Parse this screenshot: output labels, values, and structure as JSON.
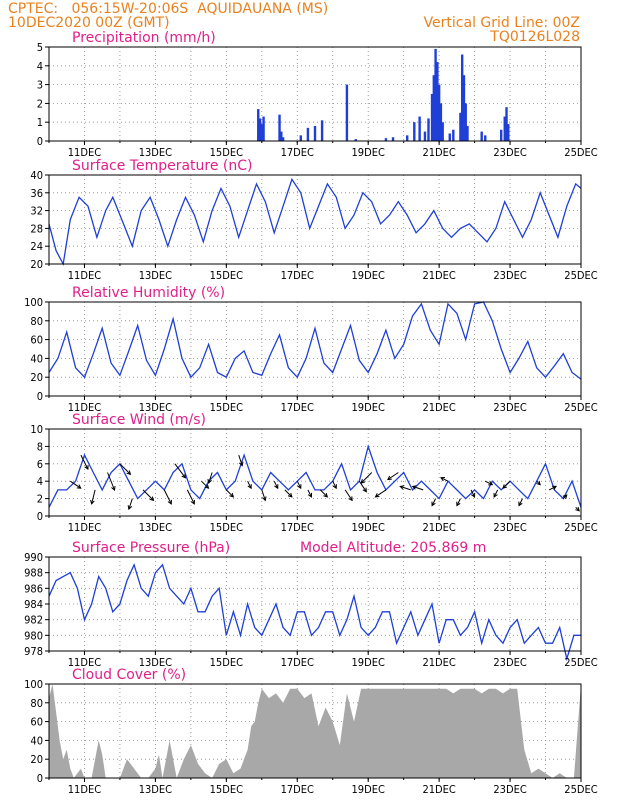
{
  "header": {
    "line1_left": "CPTEC:   056:15W-20:06S  AQUIDAUANA (MS)",
    "line2_left": "10DEC2020 00Z (GMT)",
    "line1_right": "Vertical Grid Line: 00Z",
    "line2_right": "TQ0126L028"
  },
  "chart_data": [
    {
      "type": "bar",
      "title": "Precipitation (mm/h)",
      "ylim": [
        0,
        5
      ],
      "yticks": [
        "0",
        "1",
        "2",
        "3",
        "4",
        "5"
      ],
      "xticks": [
        "11DEC",
        "13DEC",
        "15DEC",
        "17DEC",
        "19DEC",
        "21DEC",
        "23DEC",
        "25DEC"
      ],
      "color": "#1f3fd6",
      "events": [
        {
          "day": 15.9,
          "value": 1.7
        },
        {
          "day": 15.95,
          "value": 1.2
        },
        {
          "day": 16.0,
          "value": 0.9
        },
        {
          "day": 16.05,
          "value": 1.3
        },
        {
          "day": 16.5,
          "value": 1.4
        },
        {
          "day": 16.55,
          "value": 0.5
        },
        {
          "day": 16.6,
          "value": 0.2
        },
        {
          "day": 17.1,
          "value": 0.3
        },
        {
          "day": 17.3,
          "value": 0.7
        },
        {
          "day": 17.5,
          "value": 0.8
        },
        {
          "day": 17.7,
          "value": 1.1
        },
        {
          "day": 18.4,
          "value": 3.0
        },
        {
          "day": 18.65,
          "value": 0.1
        },
        {
          "day": 19.5,
          "value": 0.15
        },
        {
          "day": 19.7,
          "value": 0.2
        },
        {
          "day": 20.1,
          "value": 0.3
        },
        {
          "day": 20.3,
          "value": 1.0
        },
        {
          "day": 20.45,
          "value": 1.3
        },
        {
          "day": 20.6,
          "value": 0.5
        },
        {
          "day": 20.7,
          "value": 1.2
        },
        {
          "day": 20.8,
          "value": 2.5
        },
        {
          "day": 20.85,
          "value": 3.5
        },
        {
          "day": 20.9,
          "value": 4.9
        },
        {
          "day": 20.95,
          "value": 4.2
        },
        {
          "day": 21.0,
          "value": 3.0
        },
        {
          "day": 21.05,
          "value": 2.0
        },
        {
          "day": 21.1,
          "value": 1.0
        },
        {
          "day": 21.3,
          "value": 0.4
        },
        {
          "day": 21.4,
          "value": 0.6
        },
        {
          "day": 21.6,
          "value": 1.5
        },
        {
          "day": 21.65,
          "value": 4.6
        },
        {
          "day": 21.7,
          "value": 3.5
        },
        {
          "day": 21.75,
          "value": 2.0
        },
        {
          "day": 21.8,
          "value": 0.8
        },
        {
          "day": 22.2,
          "value": 0.5
        },
        {
          "day": 22.3,
          "value": 0.3
        },
        {
          "day": 22.75,
          "value": 0.6
        },
        {
          "day": 22.85,
          "value": 1.3
        },
        {
          "day": 22.9,
          "value": 1.8
        },
        {
          "day": 22.95,
          "value": 0.9
        }
      ]
    },
    {
      "type": "line",
      "title": "Surface Temperature (nC)",
      "ylim": [
        20,
        40
      ],
      "yticks": [
        "20",
        "24",
        "28",
        "32",
        "36",
        "40"
      ],
      "xticks": [
        "11DEC",
        "13DEC",
        "15DEC",
        "17DEC",
        "19DEC",
        "21DEC",
        "23DEC",
        "25DEC"
      ],
      "color": "#1f3fd6",
      "x": [
        10.0,
        10.2,
        10.4,
        10.6,
        10.85,
        11.1,
        11.35,
        11.6,
        11.8,
        12.1,
        12.35,
        12.6,
        12.85,
        13.1,
        13.35,
        13.6,
        13.85,
        14.1,
        14.35,
        14.6,
        14.85,
        15.1,
        15.35,
        15.6,
        15.85,
        16.1,
        16.35,
        16.6,
        16.85,
        17.1,
        17.35,
        17.6,
        17.85,
        18.1,
        18.35,
        18.6,
        18.85,
        19.1,
        19.35,
        19.6,
        19.85,
        20.1,
        20.35,
        20.6,
        20.85,
        21.1,
        21.35,
        21.6,
        21.85,
        22.1,
        22.35,
        22.6,
        22.85,
        23.1,
        23.35,
        23.6,
        23.85,
        24.1,
        24.35,
        24.6,
        24.85,
        25.0
      ],
      "values": [
        29,
        23,
        20,
        30,
        35,
        33,
        26,
        32,
        35,
        29,
        24,
        32,
        35,
        30,
        24,
        30,
        35,
        31,
        25,
        32,
        37,
        33,
        26,
        32,
        38,
        34,
        27,
        33,
        39,
        36,
        28,
        33,
        38,
        35,
        28,
        31,
        36,
        34,
        29,
        31,
        34,
        31,
        27,
        29,
        32,
        28,
        26,
        28,
        29,
        27,
        25,
        28,
        34,
        30,
        26,
        30,
        36,
        31,
        26,
        33,
        38,
        37
      ]
    },
    {
      "type": "line",
      "title": "Relative Humidity (%)",
      "ylim": [
        0,
        100
      ],
      "yticks": [
        "0",
        "20",
        "40",
        "60",
        "80",
        "100"
      ],
      "xticks": [
        "11DEC",
        "13DEC",
        "15DEC",
        "17DEC",
        "19DEC",
        "21DEC",
        "23DEC",
        "25DEC"
      ],
      "color": "#1f3fd6",
      "x": [
        10.0,
        10.25,
        10.5,
        10.75,
        11.0,
        11.25,
        11.5,
        11.75,
        12.0,
        12.25,
        12.5,
        12.75,
        13.0,
        13.25,
        13.5,
        13.75,
        14.0,
        14.25,
        14.5,
        14.75,
        15.0,
        15.25,
        15.5,
        15.75,
        16.0,
        16.25,
        16.5,
        16.75,
        17.0,
        17.25,
        17.5,
        17.75,
        18.0,
        18.25,
        18.5,
        18.75,
        19.0,
        19.25,
        19.5,
        19.75,
        20.0,
        20.25,
        20.5,
        20.75,
        21.0,
        21.25,
        21.5,
        21.75,
        22.0,
        22.25,
        22.5,
        22.75,
        23.0,
        23.25,
        23.5,
        23.75,
        24.0,
        24.25,
        24.5,
        24.75,
        25.0
      ],
      "values": [
        25,
        40,
        68,
        30,
        20,
        45,
        72,
        35,
        22,
        48,
        75,
        38,
        22,
        50,
        82,
        40,
        20,
        30,
        55,
        25,
        20,
        40,
        48,
        25,
        22,
        45,
        65,
        30,
        20,
        40,
        72,
        35,
        25,
        50,
        75,
        38,
        25,
        45,
        70,
        40,
        55,
        85,
        98,
        70,
        55,
        98,
        88,
        60,
        98,
        100,
        80,
        50,
        25,
        40,
        58,
        30,
        20,
        32,
        45,
        25,
        18
      ]
    },
    {
      "type": "line",
      "title": "Surface Wind (m/s)",
      "ylim": [
        0,
        10
      ],
      "yticks": [
        "0",
        "2",
        "4",
        "6",
        "8",
        "10"
      ],
      "xticks": [
        "11DEC",
        "13DEC",
        "15DEC",
        "17DEC",
        "19DEC",
        "21DEC",
        "23DEC",
        "25DEC"
      ],
      "color": "#1f3fd6",
      "x": [
        10.0,
        10.25,
        10.5,
        10.75,
        11.0,
        11.25,
        11.5,
        11.75,
        12.0,
        12.25,
        12.5,
        12.75,
        13.0,
        13.25,
        13.5,
        13.75,
        14.0,
        14.25,
        14.5,
        14.75,
        15.0,
        15.25,
        15.5,
        15.75,
        16.0,
        16.25,
        16.5,
        16.75,
        17.0,
        17.25,
        17.5,
        17.75,
        18.0,
        18.25,
        18.5,
        18.75,
        19.0,
        19.25,
        19.5,
        19.75,
        20.0,
        20.25,
        20.5,
        20.75,
        21.0,
        21.25,
        21.5,
        21.75,
        22.0,
        22.25,
        22.5,
        22.75,
        23.0,
        23.25,
        23.5,
        23.75,
        24.0,
        24.25,
        24.5,
        24.75,
        25.0
      ],
      "values": [
        1,
        3,
        3,
        4,
        7,
        5,
        3,
        5,
        6,
        4,
        2,
        3,
        4,
        3,
        5,
        6,
        3,
        2,
        4,
        5,
        3,
        4,
        7,
        4,
        3,
        5,
        4,
        3,
        4,
        5,
        3,
        3,
        4,
        6,
        3,
        4,
        8,
        5,
        3,
        4,
        5,
        3,
        4,
        3,
        2,
        4,
        3,
        2,
        3,
        2,
        4,
        3,
        4,
        3,
        2,
        4,
        6,
        3,
        2,
        4,
        1
      ],
      "arrows": [
        {
          "day": 10.6,
          "u": 1.5,
          "v": -1.0
        },
        {
          "day": 10.9,
          "u": 1.0,
          "v": -2.0
        },
        {
          "day": 11.3,
          "u": -0.5,
          "v": -2.0
        },
        {
          "day": 11.65,
          "u": 1.0,
          "v": -2.5
        },
        {
          "day": 12.0,
          "u": 1.5,
          "v": -1.5
        },
        {
          "day": 12.35,
          "u": -0.5,
          "v": -1.5
        },
        {
          "day": 12.65,
          "u": 1.5,
          "v": -1.5
        },
        {
          "day": 13.25,
          "u": 1.0,
          "v": -2.0
        },
        {
          "day": 13.55,
          "u": 1.5,
          "v": -2.0
        },
        {
          "day": 13.9,
          "u": 1.0,
          "v": -2.0
        },
        {
          "day": 14.3,
          "u": 1.0,
          "v": -1.0
        },
        {
          "day": 14.6,
          "u": -0.5,
          "v": -1.5
        },
        {
          "day": 15.0,
          "u": 1.0,
          "v": -1.0
        },
        {
          "day": 15.35,
          "u": 0.5,
          "v": -1.5
        },
        {
          "day": 15.6,
          "u": 0.5,
          "v": -1.0
        },
        {
          "day": 16.0,
          "u": 0.5,
          "v": -1.5
        },
        {
          "day": 16.35,
          "u": 0.5,
          "v": -1.0
        },
        {
          "day": 16.65,
          "u": 1.0,
          "v": -1.0
        },
        {
          "day": 17.0,
          "u": 0.5,
          "v": -1.0
        },
        {
          "day": 17.3,
          "u": 0.5,
          "v": -1.0
        },
        {
          "day": 17.65,
          "u": 1.0,
          "v": -1.0
        },
        {
          "day": 18.0,
          "u": 0.5,
          "v": -1.0
        },
        {
          "day": 18.35,
          "u": 1.0,
          "v": -1.5
        },
        {
          "day": 18.75,
          "u": 1.0,
          "v": -1.5
        },
        {
          "day": 19.1,
          "u": -1.5,
          "v": -1.5
        },
        {
          "day": 19.5,
          "u": -1.5,
          "v": -1.0
        },
        {
          "day": 19.85,
          "u": -1.5,
          "v": -1.0
        },
        {
          "day": 20.2,
          "u": -1.5,
          "v": 0.5
        },
        {
          "day": 20.55,
          "u": -1.5,
          "v": 0.5
        },
        {
          "day": 20.9,
          "u": -0.5,
          "v": -1.0
        },
        {
          "day": 21.25,
          "u": -1.0,
          "v": 0.5
        },
        {
          "day": 21.6,
          "u": -0.5,
          "v": -1.0
        },
        {
          "day": 21.9,
          "u": 0.5,
          "v": -1.0
        },
        {
          "day": 22.3,
          "u": 1.0,
          "v": -0.5
        },
        {
          "day": 22.65,
          "u": -0.5,
          "v": -1.0
        },
        {
          "day": 23.0,
          "u": -1.0,
          "v": -1.0
        },
        {
          "day": 23.35,
          "u": -0.5,
          "v": -1.0
        },
        {
          "day": 23.75,
          "u": 0.5,
          "v": -0.5
        },
        {
          "day": 24.1,
          "u": 1.0,
          "v": 0.5
        },
        {
          "day": 24.5,
          "u": 0.5,
          "v": 0.5
        },
        {
          "day": 24.85,
          "u": 0.5,
          "v": -0.5
        }
      ]
    },
    {
      "type": "line",
      "title": "Surface Pressure (hPa)",
      "annotation": "Model Altitude: 205.869  m",
      "ylim": [
        978,
        990
      ],
      "yticks": [
        "978",
        "980",
        "982",
        "984",
        "986",
        "988",
        "990"
      ],
      "xticks": [
        "11DEC",
        "13DEC",
        "15DEC",
        "17DEC",
        "19DEC",
        "21DEC",
        "23DEC",
        "25DEC"
      ],
      "color": "#1f3fd6",
      "x": [
        10.0,
        10.2,
        10.4,
        10.6,
        10.8,
        11.0,
        11.2,
        11.4,
        11.6,
        11.8,
        12.0,
        12.2,
        12.4,
        12.6,
        12.8,
        13.0,
        13.2,
        13.4,
        13.6,
        13.8,
        14.0,
        14.2,
        14.4,
        14.6,
        14.8,
        15.0,
        15.2,
        15.4,
        15.6,
        15.8,
        16.0,
        16.2,
        16.4,
        16.6,
        16.8,
        17.0,
        17.2,
        17.4,
        17.6,
        17.8,
        18.0,
        18.2,
        18.4,
        18.6,
        18.8,
        19.0,
        19.2,
        19.4,
        19.6,
        19.8,
        20.0,
        20.2,
        20.4,
        20.6,
        20.8,
        21.0,
        21.2,
        21.4,
        21.6,
        21.8,
        22.0,
        22.2,
        22.4,
        22.6,
        22.8,
        23.0,
        23.2,
        23.4,
        23.6,
        23.8,
        24.0,
        24.2,
        24.4,
        24.6,
        24.8,
        25.0
      ],
      "values": [
        985,
        987,
        987.5,
        988,
        986,
        982,
        984,
        987.5,
        986,
        983,
        984,
        987,
        989,
        986,
        985,
        988,
        989,
        986,
        985,
        984,
        986,
        983,
        983,
        985,
        986,
        980,
        983,
        980,
        984,
        981,
        980,
        982,
        984,
        981,
        980,
        983,
        983,
        980,
        981,
        983,
        983,
        980,
        982,
        985,
        981,
        980,
        981,
        983,
        983,
        979,
        981,
        983,
        980,
        982,
        984,
        979,
        982,
        982,
        980,
        981,
        983,
        979,
        982,
        980,
        979,
        981,
        982,
        979,
        980,
        981,
        979,
        979,
        981,
        977,
        980,
        980
      ]
    },
    {
      "type": "area",
      "title": "Cloud Cover (%)",
      "ylim": [
        0,
        100
      ],
      "yticks": [
        "0",
        "20",
        "40",
        "60",
        "80",
        "100"
      ],
      "xticks": [
        "11DEC",
        "13DEC",
        "15DEC",
        "17DEC",
        "19DEC",
        "21DEC",
        "23DEC",
        "25DEC"
      ],
      "color": "#a8a8a8",
      "x": [
        10.0,
        10.1,
        10.2,
        10.3,
        10.4,
        10.5,
        10.6,
        10.7,
        10.8,
        10.9,
        11.0,
        11.2,
        11.3,
        11.4,
        11.5,
        11.6,
        11.8,
        12.0,
        12.2,
        12.4,
        12.6,
        12.8,
        13.0,
        13.1,
        13.2,
        13.4,
        13.6,
        13.8,
        14.0,
        14.2,
        14.4,
        14.6,
        14.8,
        15.0,
        15.2,
        15.4,
        15.6,
        15.7,
        15.8,
        15.9,
        16.0,
        16.2,
        16.4,
        16.6,
        16.8,
        17.0,
        17.2,
        17.4,
        17.6,
        17.8,
        18.0,
        18.2,
        18.4,
        18.6,
        18.8,
        19.0,
        19.2,
        19.4,
        19.6,
        19.8,
        20.0,
        20.2,
        20.4,
        20.6,
        20.8,
        21.0,
        21.2,
        21.4,
        21.6,
        21.8,
        22.0,
        22.2,
        22.4,
        22.6,
        22.8,
        23.0,
        23.2,
        23.4,
        23.6,
        23.8,
        24.0,
        24.2,
        24.4,
        24.6,
        24.8,
        25.0
      ],
      "values": [
        85,
        100,
        70,
        40,
        20,
        30,
        10,
        0,
        5,
        10,
        0,
        0,
        20,
        40,
        25,
        0,
        0,
        0,
        20,
        10,
        0,
        0,
        10,
        25,
        0,
        40,
        0,
        20,
        35,
        15,
        5,
        0,
        15,
        20,
        5,
        10,
        30,
        55,
        60,
        80,
        95,
        85,
        90,
        80,
        95,
        95,
        85,
        90,
        55,
        75,
        60,
        35,
        90,
        60,
        95,
        95,
        95,
        95,
        95,
        95,
        95,
        95,
        95,
        95,
        95,
        95,
        95,
        90,
        95,
        95,
        95,
        90,
        95,
        95,
        90,
        95,
        95,
        30,
        5,
        10,
        5,
        0,
        5,
        0,
        0,
        100
      ]
    }
  ]
}
